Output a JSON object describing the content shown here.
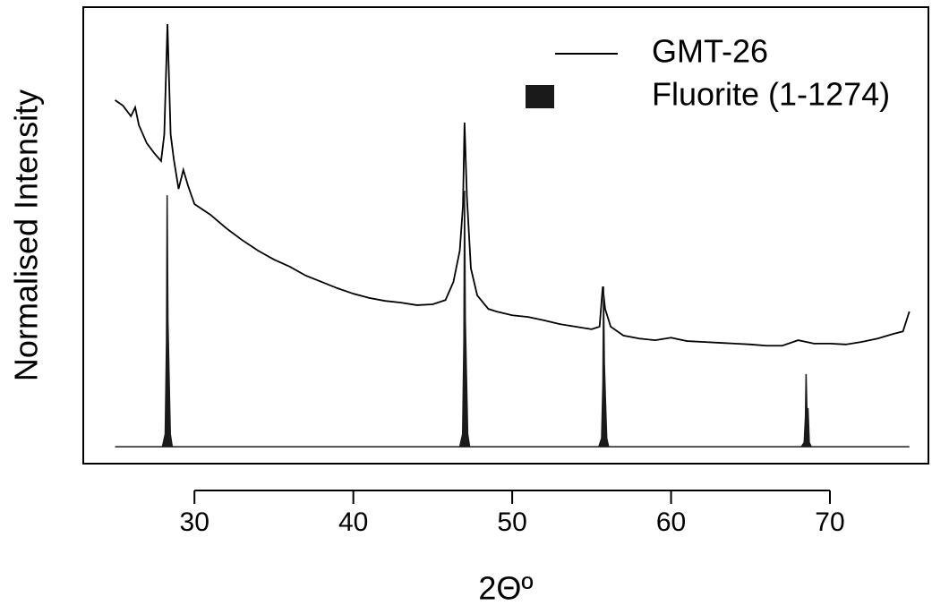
{
  "chart_data": {
    "type": "line",
    "xlabel": "2Θº",
    "ylabel": "Normalised Intensity",
    "xlim": [
      23,
      76.2
    ],
    "ylim": [
      -0.04,
      1.04
    ],
    "xticks": [
      30,
      40,
      50,
      60,
      70
    ],
    "legend": "top-right",
    "series": [
      {
        "name": "GMT-26",
        "color": "#000000",
        "style": "line",
        "x": [
          25.0,
          25.5,
          26.0,
          26.27,
          26.5,
          27.0,
          27.5,
          27.9,
          28.1,
          28.3,
          28.5,
          28.7,
          29.0,
          29.3,
          29.6,
          30,
          31,
          32,
          33,
          34,
          35,
          36,
          37,
          38,
          39,
          40,
          41,
          42,
          43,
          44,
          45,
          45.8,
          46.3,
          46.7,
          46.9,
          47.0,
          47.15,
          47.4,
          47.8,
          48.5,
          49,
          50,
          51,
          52,
          53,
          54,
          55,
          55.5,
          55.7,
          55.85,
          56.2,
          57,
          58,
          59,
          60,
          61,
          62,
          63,
          64,
          65,
          66,
          67,
          68,
          69,
          70,
          71,
          72,
          73,
          74,
          74.6,
          75
        ],
        "values": [
          0.82,
          0.807,
          0.782,
          0.803,
          0.761,
          0.718,
          0.693,
          0.676,
          0.739,
          1.0,
          0.739,
          0.68,
          0.61,
          0.655,
          0.617,
          0.574,
          0.549,
          0.517,
          0.489,
          0.464,
          0.443,
          0.426,
          0.405,
          0.39,
          0.375,
          0.362,
          0.352,
          0.345,
          0.341,
          0.335,
          0.337,
          0.347,
          0.39,
          0.464,
          0.57,
          0.767,
          0.591,
          0.422,
          0.358,
          0.326,
          0.32,
          0.311,
          0.307,
          0.299,
          0.29,
          0.284,
          0.278,
          0.284,
          0.379,
          0.326,
          0.284,
          0.263,
          0.256,
          0.252,
          0.258,
          0.25,
          0.248,
          0.246,
          0.244,
          0.242,
          0.239,
          0.239,
          0.252,
          0.244,
          0.244,
          0.242,
          0.248,
          0.256,
          0.267,
          0.273,
          0.32
        ]
      },
      {
        "name": "Fluorite (1-1274)",
        "color": "#1a1a1a",
        "style": "area",
        "x": [
          25,
          27.98,
          28.16,
          28.24,
          28.28,
          28.33,
          28.4,
          28.48,
          28.6,
          46.7,
          46.88,
          46.96,
          47.0,
          47.05,
          47.12,
          47.2,
          47.32,
          55.45,
          55.63,
          55.71,
          55.75,
          55.8,
          55.87,
          55.95,
          56.07,
          68.2,
          68.38,
          68.46,
          68.5,
          68.55,
          68.62,
          68.7,
          68.82,
          75
        ],
        "values": [
          0,
          0,
          0.03,
          0.25,
          0.595,
          0.3,
          0.17,
          0.03,
          0,
          0,
          0.03,
          0.25,
          0.606,
          0.3,
          0.17,
          0.03,
          0,
          0,
          0.02,
          0.15,
          0.379,
          0.2,
          0.11,
          0.02,
          0,
          0,
          0.01,
          0.07,
          0.172,
          0.09,
          0.09,
          0.01,
          0,
          0
        ]
      }
    ]
  }
}
